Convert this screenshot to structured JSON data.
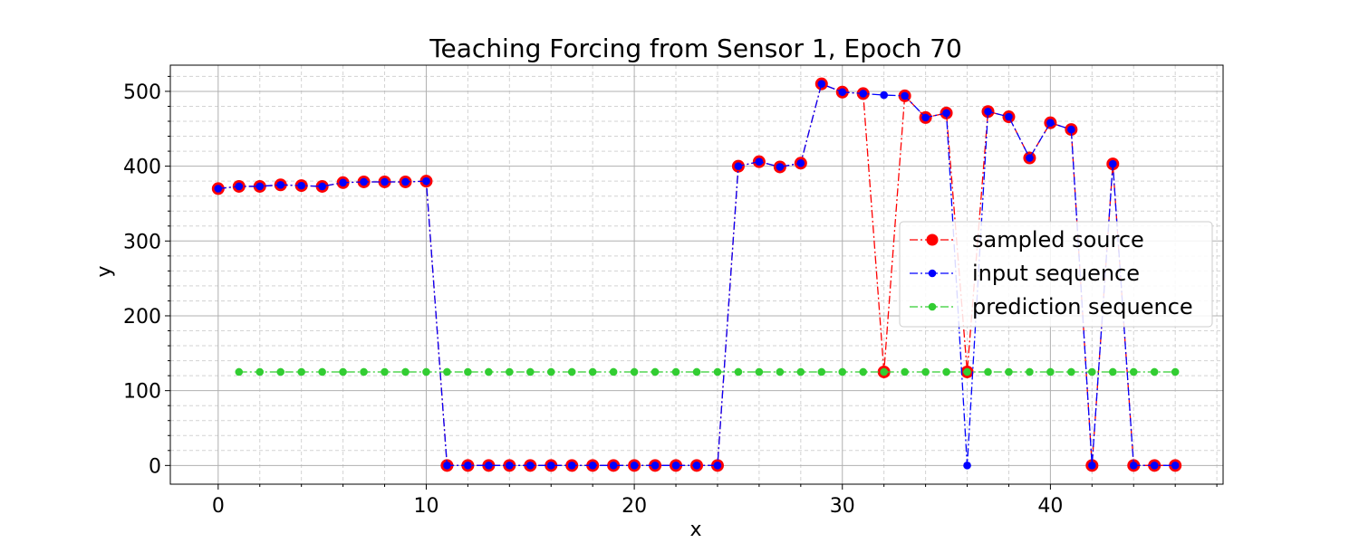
{
  "chart_data": {
    "type": "line",
    "title": "Teaching Forcing from Sensor 1, Epoch 70",
    "xlabel": "x",
    "ylabel": "y",
    "xlim": [
      -2.3,
      48.3
    ],
    "ylim": [
      -25,
      535
    ],
    "xticks": [
      0,
      10,
      20,
      30,
      40
    ],
    "yticks": [
      0,
      100,
      200,
      300,
      400,
      500
    ],
    "grid": true,
    "minor_grid": true,
    "legend_position": "center-right",
    "series": [
      {
        "name": "sampled source",
        "color": "#ff0000",
        "marker": "large-circle",
        "linestyle": "dash-dot",
        "x": [
          0,
          1,
          2,
          3,
          4,
          5,
          6,
          7,
          8,
          9,
          10,
          11,
          12,
          13,
          14,
          15,
          16,
          17,
          18,
          19,
          20,
          21,
          22,
          23,
          24,
          25,
          26,
          27,
          28,
          29,
          30,
          31,
          32,
          33,
          34,
          35,
          36,
          37,
          38,
          39,
          40,
          41,
          42,
          43,
          44,
          45,
          46
        ],
        "y": [
          370,
          373,
          373,
          375,
          374,
          373,
          378,
          379,
          379,
          379,
          380,
          0,
          0,
          0,
          0,
          0,
          0,
          0,
          0,
          0,
          0,
          0,
          0,
          0,
          0,
          400,
          406,
          399,
          404,
          510,
          499,
          497,
          125,
          494,
          465,
          471,
          125,
          473,
          466,
          411,
          458,
          449,
          0,
          403,
          0,
          0,
          0
        ]
      },
      {
        "name": "input sequence",
        "color": "#0000ff",
        "marker": "circle",
        "linestyle": "dash-dot",
        "x": [
          0,
          1,
          2,
          3,
          4,
          5,
          6,
          7,
          8,
          9,
          10,
          11,
          12,
          13,
          14,
          15,
          16,
          17,
          18,
          19,
          20,
          21,
          22,
          23,
          24,
          25,
          26,
          27,
          28,
          29,
          30,
          31,
          32,
          33,
          34,
          35,
          36,
          37,
          38,
          39,
          40,
          41,
          42,
          43,
          44,
          45,
          46
        ],
        "y": [
          370,
          373,
          373,
          375,
          374,
          373,
          378,
          379,
          379,
          379,
          380,
          0,
          0,
          0,
          0,
          0,
          0,
          0,
          0,
          0,
          0,
          0,
          0,
          0,
          0,
          400,
          406,
          399,
          404,
          510,
          499,
          497,
          495,
          494,
          465,
          471,
          0,
          473,
          466,
          411,
          458,
          449,
          0,
          403,
          0,
          0,
          0
        ]
      },
      {
        "name": "prediction sequence",
        "color": "#32cd32",
        "marker": "circle",
        "linestyle": "dash-dot",
        "x": [
          1,
          2,
          3,
          4,
          5,
          6,
          7,
          8,
          9,
          10,
          11,
          12,
          13,
          14,
          15,
          16,
          17,
          18,
          19,
          20,
          21,
          22,
          23,
          24,
          25,
          26,
          27,
          28,
          29,
          30,
          31,
          32,
          33,
          34,
          35,
          36,
          37,
          38,
          39,
          40,
          41,
          42,
          43,
          44,
          45,
          46
        ],
        "y": [
          125,
          125,
          125,
          125,
          125,
          125,
          125,
          125,
          125,
          125,
          125,
          125,
          125,
          125,
          125,
          125,
          125,
          125,
          125,
          125,
          125,
          125,
          125,
          125,
          125,
          125,
          125,
          125,
          125,
          125,
          125,
          125,
          125,
          125,
          125,
          125,
          125,
          125,
          125,
          125,
          125,
          125,
          125,
          125,
          125,
          125
        ]
      }
    ]
  }
}
